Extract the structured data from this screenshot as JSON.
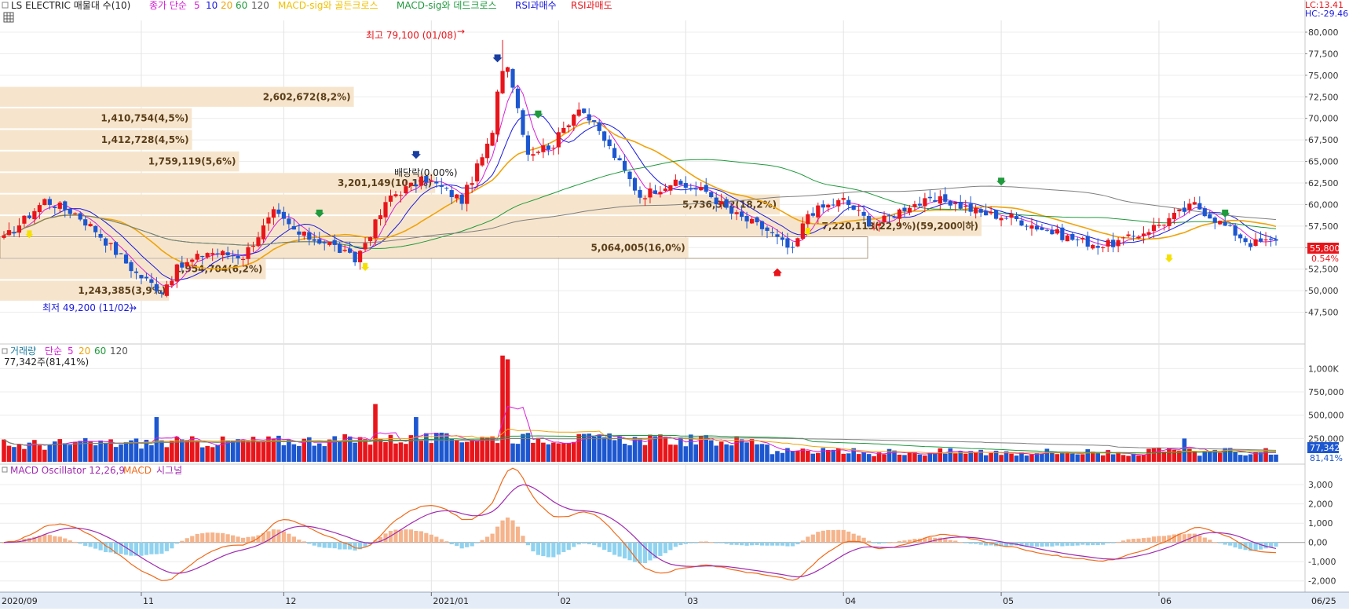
{
  "header": {
    "title": "LS ELECTRIC 매물대 수(10)",
    "ma_label": "종가 단순",
    "ma_periods": [
      "5",
      "10",
      "20",
      "60",
      "120"
    ],
    "golden_cross": "MACD-sig와 골든크로스",
    "dead_cross": "MACD-sig와 데드크로스",
    "rsi_buy": "RSI과매수",
    "rsi_sell": "RSI과매도",
    "lc": "LC:13.41",
    "hc": "HC:-29.46"
  },
  "volume_header": {
    "title": "거래량",
    "ma_label": "단순",
    "ma_periods": [
      "5",
      "20",
      "60",
      "120"
    ],
    "current": "77,342주(81,41%)"
  },
  "macd_header": {
    "osc": "MACD Oscillator 12,26,9",
    "macd": "MACD",
    "signal": "시그널"
  },
  "annotations": {
    "high": "최고 79,100 (01/08)",
    "low": "최저 49,200 (11/02)",
    "dividend": "배당락(0.00%)"
  },
  "price_tag": {
    "value": "55,800",
    "change": "0.54%"
  },
  "volume_tag": {
    "value": "77,342",
    "pct": "81,41%"
  },
  "colors": {
    "up": "#e8151b",
    "down": "#1d57d0",
    "ma5": "#d81fd8",
    "ma10": "#1a1adf",
    "ma20": "#f0a30a",
    "ma60": "#1f9a3c",
    "ma120": "#7f7f7f",
    "profile": "#f6e5cc",
    "macd": "#f06a1a",
    "signal": "#a02ab0",
    "hist_pos": "#f5b48c",
    "hist_neg": "#8fd3f0"
  },
  "chart_data": [
    {
      "type": "candlestick",
      "title": "LS ELECTRIC",
      "ylim": [
        45000,
        81000
      ],
      "y_ticks": [
        "80,000",
        "77,500",
        "75,000",
        "72,500",
        "70,000",
        "67,500",
        "65,000",
        "62,500",
        "60,000",
        "57,500",
        "55,000",
        "52,500",
        "50,000",
        "47,500"
      ],
      "x_labels": [
        "2020/09",
        "11",
        "12",
        "2021/01",
        "02",
        "03",
        "04",
        "05",
        "06",
        "06/25"
      ],
      "ohlc_waypoints": [
        [
          0,
          56000
        ],
        [
          8,
          60500
        ],
        [
          14,
          59000
        ],
        [
          18,
          57000
        ],
        [
          26,
          52000
        ],
        [
          31,
          50000
        ],
        [
          34,
          52500
        ],
        [
          40,
          54500
        ],
        [
          47,
          54000
        ],
        [
          53,
          59000
        ],
        [
          58,
          56500
        ],
        [
          64,
          55500
        ],
        [
          69,
          53500
        ],
        [
          76,
          61000
        ],
        [
          83,
          63000
        ],
        [
          90,
          60500
        ],
        [
          96,
          68000
        ],
        [
          98,
          79100
        ],
        [
          103,
          66000
        ],
        [
          108,
          67000
        ],
        [
          113,
          71500
        ],
        [
          118,
          67500
        ],
        [
          125,
          61000
        ],
        [
          131,
          62500
        ],
        [
          138,
          61500
        ],
        [
          143,
          59000
        ],
        [
          150,
          57000
        ],
        [
          155,
          54500
        ],
        [
          158,
          59000
        ],
        [
          165,
          60500
        ],
        [
          171,
          57500
        ],
        [
          178,
          60000
        ],
        [
          185,
          60500
        ],
        [
          192,
          59000
        ],
        [
          198,
          58500
        ],
        [
          205,
          57000
        ],
        [
          210,
          56000
        ],
        [
          216,
          55200
        ],
        [
          221,
          56000
        ],
        [
          228,
          58000
        ],
        [
          234,
          60000
        ],
        [
          240,
          57500
        ],
        [
          245,
          55500
        ],
        [
          250,
          55800
        ]
      ],
      "volume_profile": [
        {
          "price": 72500,
          "volume": 2602672,
          "label": "2,602,672(8,2%)"
        },
        {
          "price": 70000,
          "volume": 1410754,
          "label": "1,410,754(4,5%)"
        },
        {
          "price": 67500,
          "volume": 1412728,
          "label": "1,412,728(4,5%)"
        },
        {
          "price": 65000,
          "volume": 1759119,
          "label": "1,759,119(5,6%)"
        },
        {
          "price": 62500,
          "volume": 3201149,
          "label": "3,201,149(10,1%)"
        },
        {
          "price": 60000,
          "volume": 5736302,
          "label": "5,736,302(18,2%)"
        },
        {
          "price": 57500,
          "volume": 7220113,
          "label": "7,220,113(22,9%)(59,200이하)"
        },
        {
          "price": 55000,
          "volume": 5064005,
          "label": "5,064,005(16,0%)"
        },
        {
          "price": 52500,
          "volume": 1954704,
          "label": "1,954,704(6,2%)"
        },
        {
          "price": 50000,
          "volume": 1243385,
          "label": "1,243,385(3,9%)"
        }
      ]
    },
    {
      "type": "bar",
      "title": "거래량",
      "ylim": [
        0,
        1180000
      ],
      "y_ticks": [
        "1,000K",
        "750,000",
        "500,000",
        "250,000"
      ],
      "peaks": [
        [
          30,
          480000
        ],
        [
          73,
          620000
        ],
        [
          81,
          480000
        ],
        [
          98,
          1140000
        ],
        [
          99,
          1100000
        ],
        [
          232,
          250000
        ]
      ]
    },
    {
      "type": "bar",
      "title": "MACD Oscillator 12,26,9",
      "ylim": [
        -2500,
        3700
      ],
      "y_ticks": [
        "3,000",
        "2,000",
        "1,000",
        "0,00",
        "-1,000",
        "-2,000"
      ]
    }
  ]
}
